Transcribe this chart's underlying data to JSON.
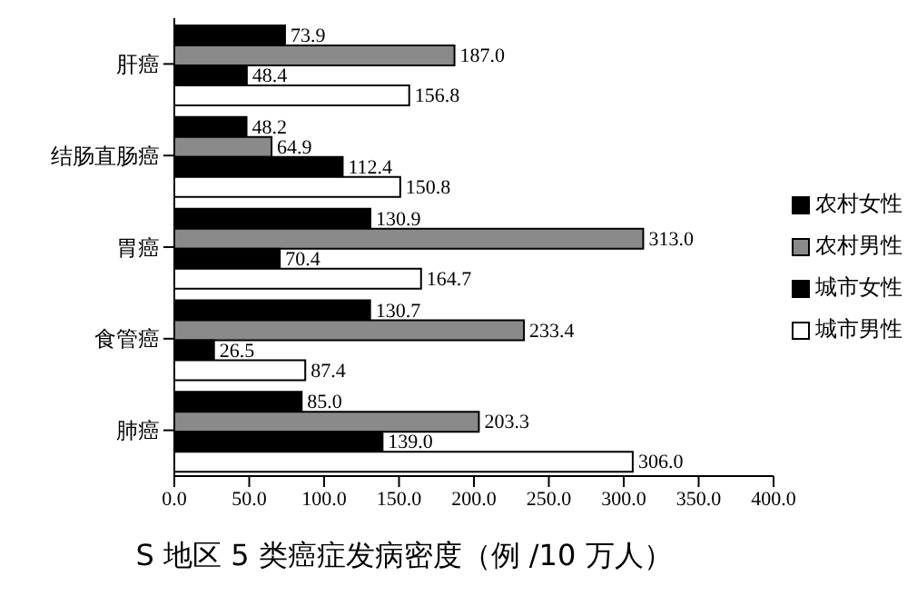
{
  "chart_data": {
    "type": "bar",
    "orientation": "horizontal",
    "title": "S 地区 5 类癌症发病密度（例 /10 万人）",
    "categories": [
      "肝癌",
      "结肠直肠癌",
      "胃癌",
      "食管癌",
      "肺癌"
    ],
    "series": [
      {
        "name": "农村女性",
        "color": "#000000",
        "values": [
          73.9,
          48.2,
          130.9,
          130.7,
          85.0
        ],
        "value_labels": [
          "73.9",
          "48.2",
          "130.9",
          "130.7",
          "85.0"
        ]
      },
      {
        "name": "农村男性",
        "color": "#8a8a8a",
        "values": [
          187.0,
          64.9,
          313.0,
          233.4,
          203.3
        ],
        "value_labels": [
          "187.0",
          "64.9",
          "313.0",
          "233.4",
          "203.3"
        ]
      },
      {
        "name": "城市女性",
        "color": "#000000",
        "values": [
          48.4,
          112.4,
          70.4,
          26.5,
          139.0
        ],
        "value_labels": [
          "48.4",
          "112.4",
          "70.4",
          "26.5",
          "139.0"
        ]
      },
      {
        "name": "城市男性",
        "color": "#ffffff",
        "values": [
          156.8,
          150.8,
          164.7,
          87.4,
          306.0
        ],
        "value_labels": [
          "156.8",
          "150.8",
          "164.7",
          "87.4",
          "306.0"
        ]
      }
    ],
    "xlim": [
      0,
      400
    ],
    "xticks": [
      {
        "value": 0,
        "label": "0.0"
      },
      {
        "value": 50,
        "label": "50.0"
      },
      {
        "value": 100,
        "label": "100.0"
      },
      {
        "value": 150,
        "label": "150.0"
      },
      {
        "value": 200,
        "label": "200.0"
      },
      {
        "value": 250,
        "label": "250.0"
      },
      {
        "value": 300,
        "label": "300.0"
      },
      {
        "value": 350,
        "label": "350.0"
      },
      {
        "value": 400,
        "label": "400.0"
      }
    ],
    "legend": "right",
    "grid": false
  }
}
